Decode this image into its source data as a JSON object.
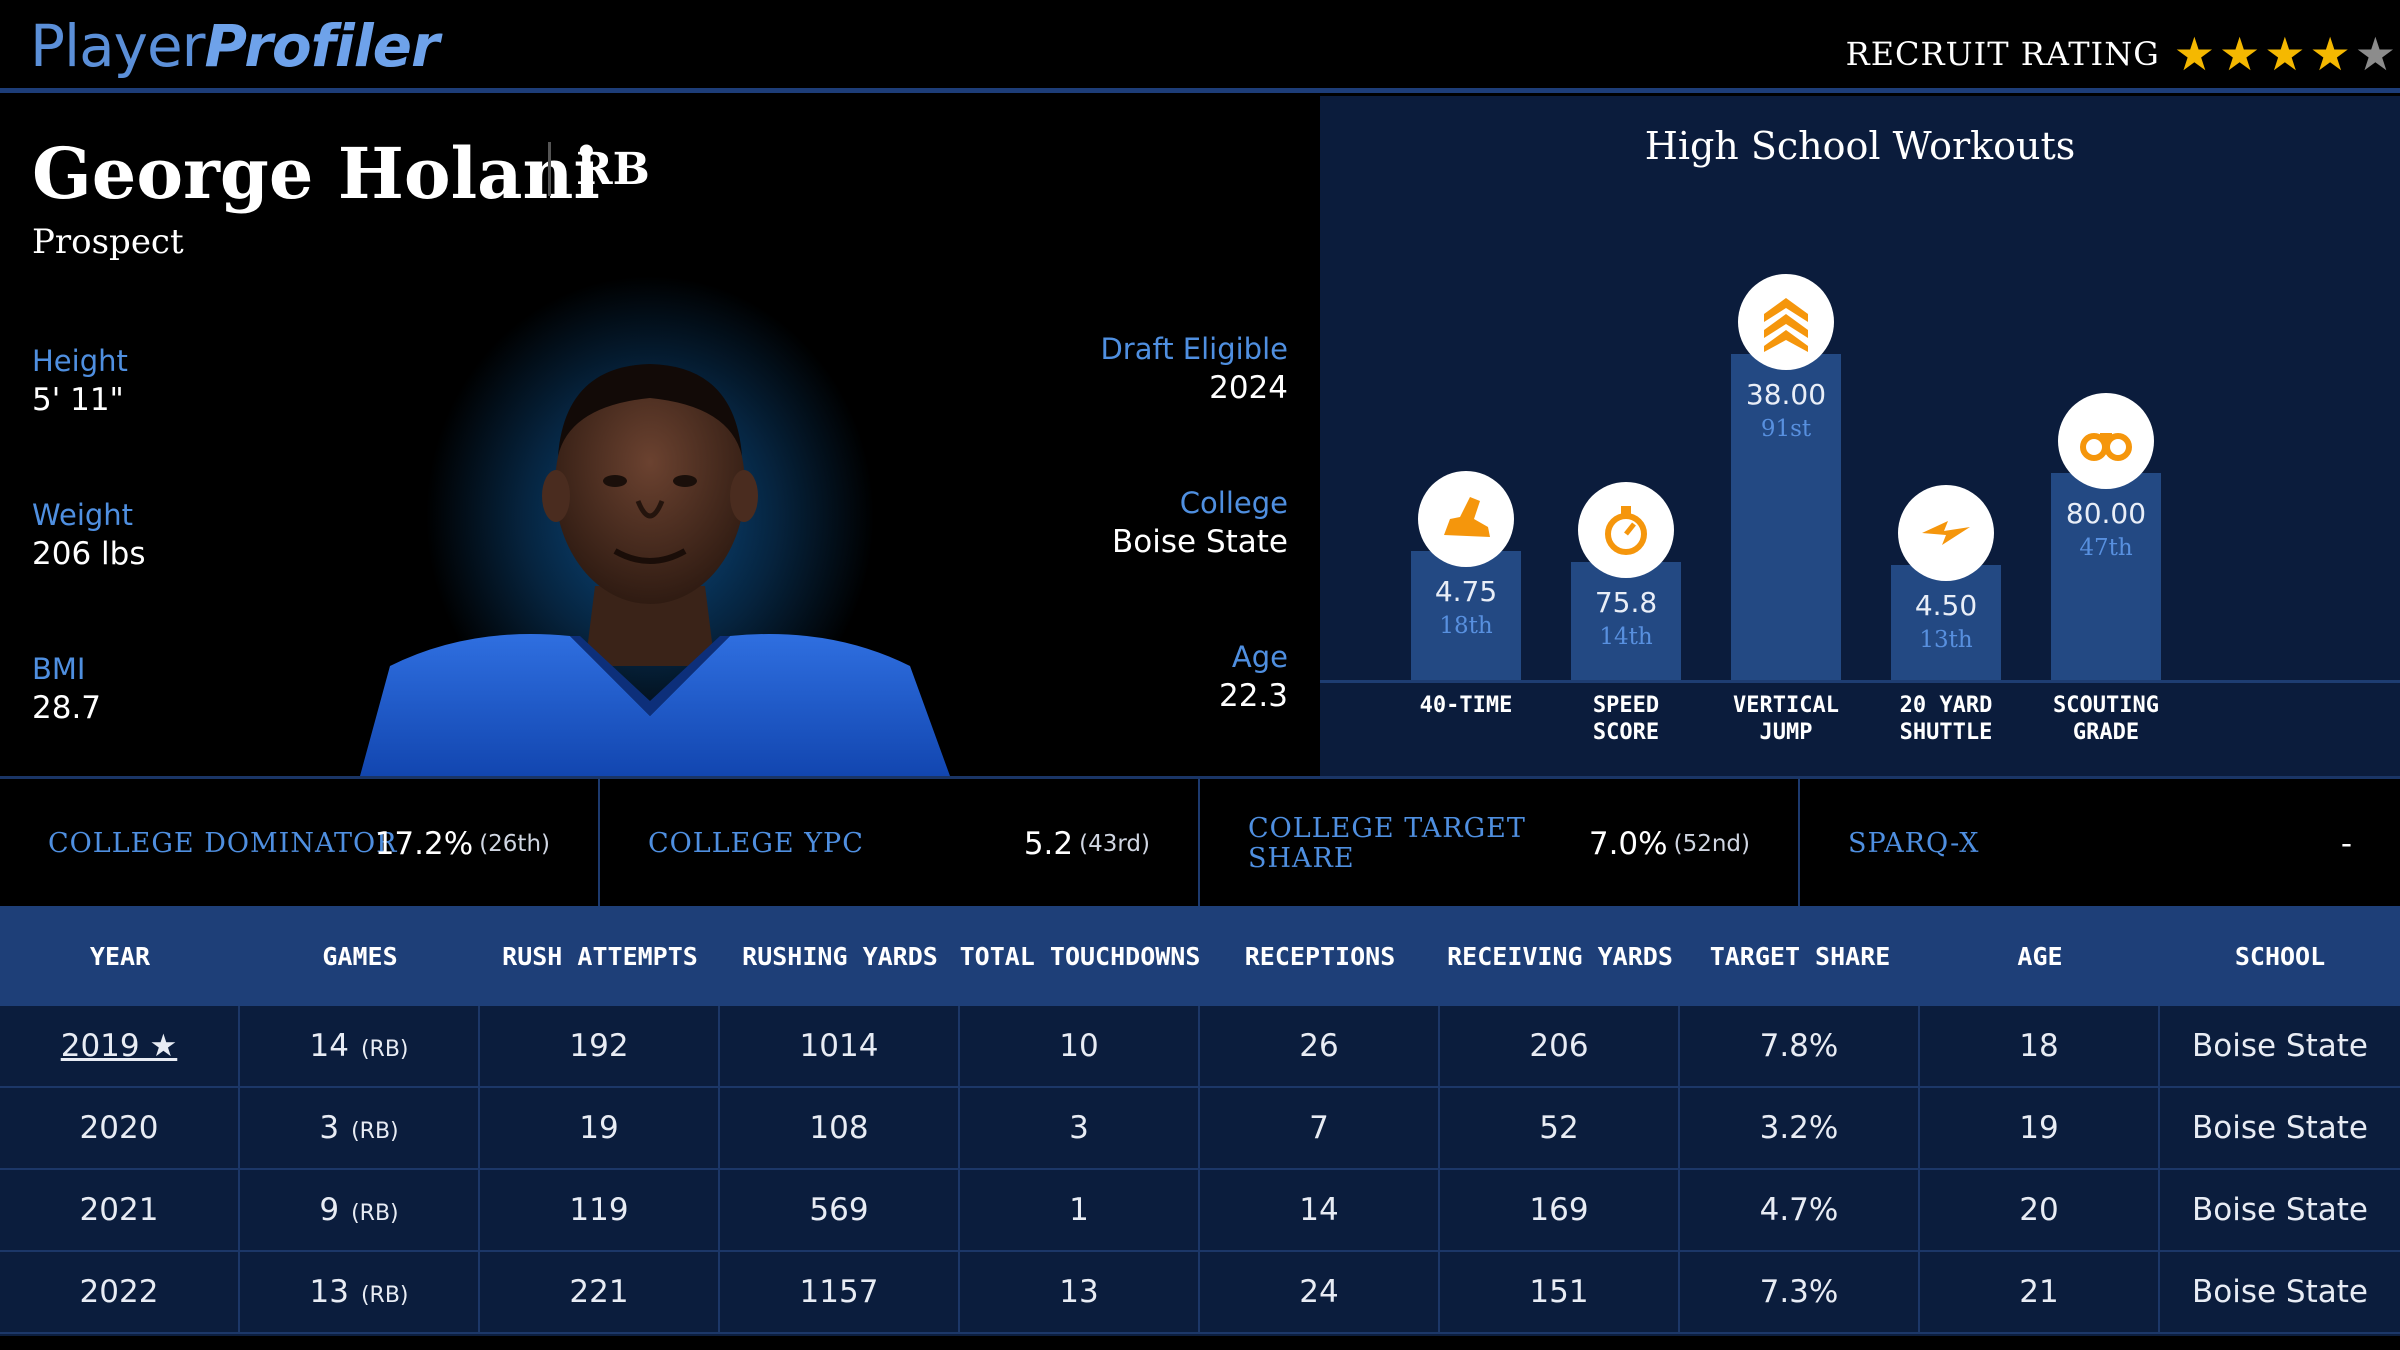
{
  "brand": {
    "part1": "Player",
    "part2": "Profiler"
  },
  "recruit": {
    "label": "RECRUIT RATING",
    "rating": 4,
    "max": 5,
    "star_color": "#f5b800"
  },
  "player": {
    "name": "George Holani",
    "position": "RB",
    "status": "Prospect",
    "left_stats": [
      {
        "label": "Height",
        "value": "5' 11\""
      },
      {
        "label": "Weight",
        "value": "206 lbs"
      },
      {
        "label": "BMI",
        "value": "28.7"
      }
    ],
    "right_stats": [
      {
        "label": "Draft Eligible",
        "value": "2024"
      },
      {
        "label": "College",
        "value": "Boise State"
      },
      {
        "label": "Age",
        "value": "22.3"
      }
    ]
  },
  "workouts": {
    "title": "High School Workouts",
    "bars": [
      {
        "icon": "running-shoe-icon",
        "value": "4.75",
        "percentile": "18th",
        "label1": "40-TIME",
        "label2": "",
        "pct": 18
      },
      {
        "icon": "stopwatch-icon",
        "value": "75.8",
        "percentile": "14th",
        "label1": "SPEED",
        "label2": "SCORE",
        "pct": 14
      },
      {
        "icon": "chevrons-up-icon",
        "value": "38.00",
        "percentile": "91st",
        "label1": "VERTICAL",
        "label2": "JUMP",
        "pct": 91
      },
      {
        "icon": "lightning-icon",
        "value": "4.50",
        "percentile": "13th",
        "label1": "20 YARD",
        "label2": "SHUTTLE",
        "pct": 13
      },
      {
        "icon": "binoculars-icon",
        "value": "80.00",
        "percentile": "47th",
        "label1": "SCOUTING",
        "label2": "GRADE",
        "pct": 47
      }
    ]
  },
  "metrics": [
    {
      "label": "COLLEGE DOMINATOR",
      "value": "17.2%",
      "rank": "(26th)"
    },
    {
      "label": "COLLEGE YPC",
      "value": "5.2",
      "rank": "(43rd)"
    },
    {
      "label": "COLLEGE TARGET SHARE",
      "value": "7.0%",
      "rank": "(52nd)"
    },
    {
      "label": "SPARQ-X",
      "value": "-",
      "rank": ""
    }
  ],
  "table": {
    "headers": [
      "YEAR",
      "GAMES",
      "RUSH ATTEMPTS",
      "RUSHING YARDS",
      "TOTAL TOUCHDOWNS",
      "RECEPTIONS",
      "RECEIVING YARDS",
      "TARGET SHARE",
      "AGE",
      "SCHOOL"
    ],
    "rows": [
      {
        "year": "2019 ★",
        "games": "14",
        "pos": "(RB)",
        "rush_att": "192",
        "rush_yds": "1014",
        "td": "10",
        "rec": "26",
        "rec_yds": "206",
        "tgt": "7.8%",
        "age": "18",
        "school": "Boise State"
      },
      {
        "year": "2020",
        "games": "3",
        "pos": "(RB)",
        "rush_att": "19",
        "rush_yds": "108",
        "td": "3",
        "rec": "7",
        "rec_yds": "52",
        "tgt": "3.2%",
        "age": "19",
        "school": "Boise State"
      },
      {
        "year": "2021",
        "games": "9",
        "pos": "(RB)",
        "rush_att": "119",
        "rush_yds": "569",
        "td": "1",
        "rec": "14",
        "rec_yds": "169",
        "tgt": "4.7%",
        "age": "20",
        "school": "Boise State"
      },
      {
        "year": "2022",
        "games": "13",
        "pos": "(RB)",
        "rush_att": "221",
        "rush_yds": "1157",
        "td": "13",
        "rec": "24",
        "rec_yds": "151",
        "tgt": "7.3%",
        "age": "21",
        "school": "Boise State"
      }
    ]
  },
  "colors": {
    "accent": "#4f8fe0",
    "icon_orange": "#f5960c",
    "bar": "#234983",
    "header": "#1e3f78"
  }
}
